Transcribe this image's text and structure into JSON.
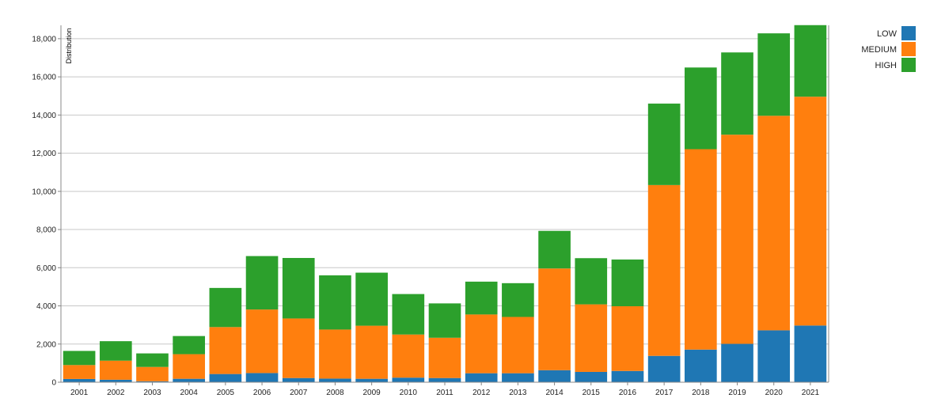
{
  "chart_data": {
    "type": "bar",
    "stacked": true,
    "ylabel": "Distribution",
    "xlabel": "",
    "ylim": [
      0,
      18700
    ],
    "yticks": [
      0,
      2000,
      4000,
      6000,
      8000,
      10000,
      12000,
      14000,
      16000,
      18000
    ],
    "ytick_labels": [
      "0",
      "2,000",
      "4,000",
      "6,000",
      "8,000",
      "10,000",
      "12,000",
      "14,000",
      "16,000",
      "18,000"
    ],
    "grid": true,
    "legend_position": "top-right",
    "categories": [
      "2001",
      "2002",
      "2003",
      "2004",
      "2005",
      "2006",
      "2007",
      "2008",
      "2009",
      "2010",
      "2011",
      "2012",
      "2013",
      "2014",
      "2015",
      "2016",
      "2017",
      "2018",
      "2019",
      "2020",
      "2021"
    ],
    "series": [
      {
        "name": "LOW",
        "color": "#1f77b4",
        "values": [
          170,
          130,
          50,
          180,
          430,
          480,
          220,
          190,
          180,
          240,
          220,
          470,
          470,
          630,
          540,
          590,
          1380,
          1710,
          2010,
          2720,
          2970
        ]
      },
      {
        "name": "MEDIUM",
        "color": "#ff7f0e",
        "values": [
          730,
          1000,
          750,
          1290,
          2460,
          3330,
          3120,
          2570,
          2780,
          2260,
          2110,
          3080,
          2950,
          5330,
          3540,
          3390,
          8950,
          10500,
          10960,
          11240,
          11990
        ]
      },
      {
        "name": "HIGH",
        "color": "#2ca02c",
        "values": [
          740,
          1020,
          710,
          950,
          2050,
          2800,
          3170,
          2840,
          2780,
          2120,
          1800,
          1720,
          1770,
          1970,
          2420,
          2450,
          4270,
          4280,
          4310,
          4320,
          3750
        ]
      }
    ]
  }
}
